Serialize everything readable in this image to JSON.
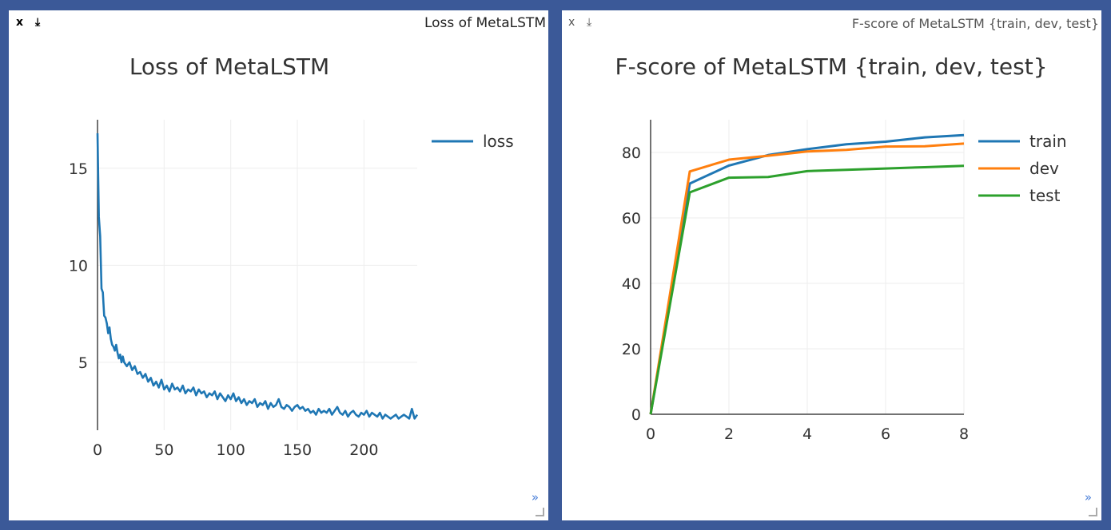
{
  "panes": [
    {
      "close_label": "x",
      "download_label": "⤓",
      "window_title": "Loss of MetaLSTM",
      "expand_label": "»",
      "chart_data": {
        "type": "line",
        "title": "Loss of MetaLSTM",
        "xlabel": "",
        "ylabel": "",
        "xlim": [
          0,
          240
        ],
        "ylim": [
          1.5,
          17.5
        ],
        "x_ticks": [
          0,
          50,
          100,
          150,
          200
        ],
        "y_ticks": [
          5,
          10,
          15
        ],
        "grid": true,
        "legend_position": "top-right",
        "series": [
          {
            "name": "loss",
            "color": "#1f77b4",
            "x": [
              0,
              1,
              2,
              3,
              4,
              5,
              6,
              7,
              8,
              9,
              10,
              11,
              12,
              13,
              14,
              15,
              16,
              17,
              18,
              19,
              20,
              22,
              24,
              26,
              28,
              30,
              32,
              34,
              36,
              38,
              40,
              42,
              44,
              46,
              48,
              50,
              52,
              54,
              56,
              58,
              60,
              62,
              64,
              66,
              68,
              70,
              72,
              74,
              76,
              78,
              80,
              82,
              84,
              86,
              88,
              90,
              92,
              94,
              96,
              98,
              100,
              102,
              104,
              106,
              108,
              110,
              112,
              114,
              116,
              118,
              120,
              122,
              124,
              126,
              128,
              130,
              132,
              134,
              136,
              138,
              140,
              142,
              144,
              146,
              148,
              150,
              152,
              154,
              156,
              158,
              160,
              162,
              164,
              166,
              168,
              170,
              172,
              174,
              176,
              178,
              180,
              182,
              184,
              186,
              188,
              190,
              192,
              194,
              196,
              198,
              200,
              202,
              204,
              206,
              208,
              210,
              212,
              214,
              216,
              218,
              220,
              222,
              224,
              226,
              228,
              230,
              232,
              234,
              236,
              238,
              240
            ],
            "values": [
              16.8,
              12.5,
              11.5,
              8.8,
              8.6,
              7.4,
              7.3,
              7.0,
              6.5,
              6.8,
              6.2,
              5.9,
              5.8,
              5.6,
              5.9,
              5.5,
              5.2,
              5.4,
              5.0,
              5.3,
              5.0,
              4.8,
              5.0,
              4.6,
              4.8,
              4.4,
              4.5,
              4.2,
              4.4,
              4.0,
              4.2,
              3.8,
              4.0,
              3.7,
              4.1,
              3.6,
              3.8,
              3.5,
              3.9,
              3.6,
              3.7,
              3.5,
              3.8,
              3.4,
              3.6,
              3.5,
              3.7,
              3.3,
              3.6,
              3.4,
              3.5,
              3.2,
              3.4,
              3.3,
              3.5,
              3.1,
              3.4,
              3.2,
              3.0,
              3.3,
              3.1,
              3.4,
              3.0,
              3.2,
              2.9,
              3.1,
              2.8,
              3.0,
              2.9,
              3.1,
              2.7,
              2.9,
              2.8,
              3.0,
              2.6,
              2.9,
              2.7,
              2.8,
              3.1,
              2.7,
              2.6,
              2.8,
              2.7,
              2.5,
              2.7,
              2.8,
              2.6,
              2.7,
              2.5,
              2.6,
              2.4,
              2.5,
              2.3,
              2.6,
              2.4,
              2.5,
              2.4,
              2.6,
              2.3,
              2.5,
              2.7,
              2.4,
              2.3,
              2.5,
              2.2,
              2.4,
              2.5,
              2.3,
              2.2,
              2.4,
              2.3,
              2.5,
              2.2,
              2.4,
              2.3,
              2.2,
              2.4,
              2.1,
              2.3,
              2.2,
              2.1,
              2.2,
              2.3,
              2.1,
              2.2,
              2.3,
              2.2,
              2.1,
              2.6,
              2.1,
              2.3
            ]
          }
        ]
      }
    },
    {
      "close_label": "x",
      "download_label": "⤓",
      "window_title": "F-score of MetaLSTM {train, dev, test}",
      "expand_label": "»",
      "chart_data": {
        "type": "line",
        "title": "F-score of MetaLSTM {train, dev, test}",
        "xlabel": "",
        "ylabel": "",
        "xlim": [
          0,
          8
        ],
        "ylim": [
          0,
          90
        ],
        "x_ticks": [
          0,
          2,
          4,
          6,
          8
        ],
        "y_ticks": [
          0,
          20,
          40,
          60,
          80
        ],
        "grid": true,
        "legend_position": "top-right",
        "series": [
          {
            "name": "train",
            "color": "#1f77b4",
            "x": [
              0,
              1,
              2,
              3,
              4,
              5,
              6,
              7,
              8
            ],
            "values": [
              0,
              70.5,
              76.0,
              79.2,
              81.0,
              82.5,
              83.3,
              84.6,
              85.3
            ]
          },
          {
            "name": "dev",
            "color": "#ff7f0e",
            "x": [
              0,
              1,
              2,
              3,
              4,
              5,
              6,
              7,
              8
            ],
            "values": [
              0,
              74.2,
              77.8,
              79.0,
              80.3,
              80.8,
              81.8,
              81.9,
              82.7
            ]
          },
          {
            "name": "test",
            "color": "#2ca02c",
            "x": [
              0,
              1,
              2,
              3,
              4,
              5,
              6,
              7,
              8
            ],
            "values": [
              0,
              67.8,
              72.3,
              72.5,
              74.3,
              74.7,
              75.1,
              75.5,
              75.9
            ]
          }
        ]
      }
    }
  ]
}
